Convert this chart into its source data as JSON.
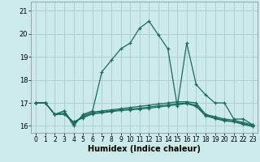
{
  "xlabel": "Humidex (Indice chaleur)",
  "xlim": [
    -0.5,
    23.5
  ],
  "ylim": [
    15.7,
    21.4
  ],
  "yticks": [
    16,
    17,
    18,
    19,
    20,
    21
  ],
  "xticks": [
    0,
    1,
    2,
    3,
    4,
    5,
    6,
    7,
    8,
    9,
    10,
    11,
    12,
    13,
    14,
    15,
    16,
    17,
    18,
    19,
    20,
    21,
    22,
    23
  ],
  "bg_color": "#cceaea",
  "grid_color": "#aacccc",
  "line_color": "#1a6b5a",
  "lines": [
    {
      "x": [
        0,
        1,
        2,
        3,
        4,
        5,
        6,
        7,
        8,
        9,
        10,
        11,
        12,
        13,
        14,
        15,
        16,
        17,
        18,
        19,
        20,
        21,
        22,
        23
      ],
      "y": [
        17.0,
        17.0,
        16.5,
        16.65,
        16.0,
        16.5,
        16.65,
        18.35,
        18.85,
        19.35,
        19.6,
        20.25,
        20.55,
        19.95,
        19.35,
        16.85,
        19.6,
        17.8,
        17.35,
        17.0,
        17.0,
        16.3,
        16.3,
        16.05
      ]
    },
    {
      "x": [
        0,
        1,
        2,
        3,
        4,
        5,
        6,
        7,
        8,
        9,
        10,
        11,
        12,
        13,
        14,
        15,
        16,
        17,
        18,
        19,
        20,
        21,
        22,
        23
      ],
      "y": [
        17.0,
        17.0,
        16.5,
        16.65,
        16.1,
        16.45,
        16.6,
        16.65,
        16.7,
        16.75,
        16.8,
        16.85,
        16.9,
        16.95,
        17.0,
        17.05,
        17.05,
        17.0,
        16.5,
        16.4,
        16.3,
        16.25,
        16.15,
        16.05
      ]
    },
    {
      "x": [
        0,
        1,
        2,
        3,
        4,
        5,
        6,
        7,
        8,
        9,
        10,
        11,
        12,
        13,
        14,
        15,
        16,
        17,
        18,
        19,
        20,
        21,
        22,
        23
      ],
      "y": [
        17.0,
        17.0,
        16.5,
        16.55,
        16.15,
        16.4,
        16.55,
        16.6,
        16.65,
        16.7,
        16.73,
        16.77,
        16.82,
        16.87,
        16.92,
        16.97,
        17.0,
        16.9,
        16.47,
        16.35,
        16.25,
        16.2,
        16.1,
        16.0
      ]
    },
    {
      "x": [
        0,
        1,
        2,
        3,
        4,
        5,
        6,
        7,
        8,
        9,
        10,
        11,
        12,
        13,
        14,
        15,
        16,
        17,
        18,
        19,
        20,
        21,
        22,
        23
      ],
      "y": [
        17.0,
        17.0,
        16.5,
        16.5,
        16.18,
        16.35,
        16.52,
        16.57,
        16.62,
        16.67,
        16.7,
        16.73,
        16.77,
        16.82,
        16.87,
        16.92,
        16.97,
        16.85,
        16.44,
        16.32,
        16.22,
        16.18,
        16.07,
        15.97
      ]
    }
  ]
}
